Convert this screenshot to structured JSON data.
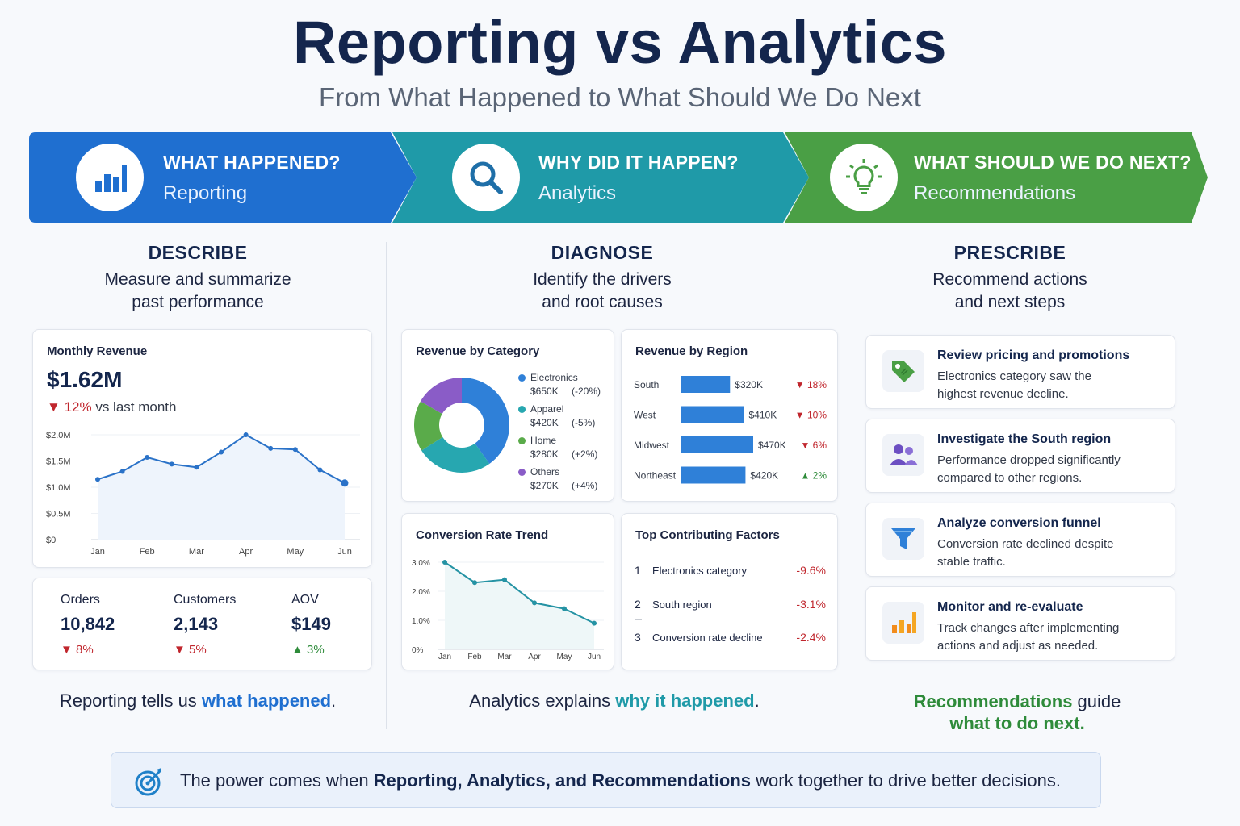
{
  "header": {
    "title": "Reporting vs Analytics",
    "subtitle": "From What Happened to What Should We Do Next"
  },
  "banners": [
    {
      "title": "WHAT HAPPENED?",
      "subtitle": "Reporting",
      "icon": "bar-chart-icon",
      "color": "#1f6fd0"
    },
    {
      "title": "WHY DID IT HAPPEN?",
      "subtitle": "Analytics",
      "icon": "magnifier-icon",
      "color": "#1f9aa8"
    },
    {
      "title": "WHAT SHOULD WE DO NEXT?",
      "subtitle": "Recommendations",
      "icon": "lightbulb-icon",
      "color": "#4a9f45"
    }
  ],
  "columns": {
    "describe": {
      "heading": "DESCRIBE",
      "line1": "Measure and summarize",
      "line2": "past performance"
    },
    "diagnose": {
      "heading": "DIAGNOSE",
      "line1": "Identify the drivers",
      "line2": "and root causes"
    },
    "prescribe": {
      "heading": "PRESCRIBE",
      "line1": "Recommend actions",
      "line2": "and next steps"
    }
  },
  "monthly_revenue": {
    "title": "Monthly Revenue",
    "value": "$1.62M",
    "change": "12%",
    "change_text": "vs last month"
  },
  "kpis": [
    {
      "label": "Orders",
      "value": "10,842",
      "change": "8%",
      "dir": "down"
    },
    {
      "label": "Customers",
      "value": "2,143",
      "change": "5%",
      "dir": "down"
    },
    {
      "label": "AOV",
      "value": "$149",
      "change": "3%",
      "dir": "up"
    }
  ],
  "category": {
    "title": "Revenue by Category",
    "items": [
      {
        "name": "Electronics",
        "value": "$650K",
        "change": "(-20%)",
        "color": "#2f80d8"
      },
      {
        "name": "Apparel",
        "value": "$420K",
        "change": "(-5%)",
        "color": "#27a7b0"
      },
      {
        "name": "Home",
        "value": "$280K",
        "change": "(+2%)",
        "color": "#5aab4a"
      },
      {
        "name": "Others",
        "value": "$270K",
        "change": "(+4%)",
        "color": "#8a5cc7"
      }
    ]
  },
  "region": {
    "title": "Revenue by Region",
    "items": [
      {
        "name": "South",
        "label": "$320K",
        "change": "18%",
        "dir": "down"
      },
      {
        "name": "West",
        "label": "$410K",
        "change": "10%",
        "dir": "down"
      },
      {
        "name": "Midwest",
        "label": "$470K",
        "change": "6%",
        "dir": "down"
      },
      {
        "name": "Northeast",
        "label": "$420K",
        "change": "2%",
        "dir": "up"
      }
    ]
  },
  "conversion": {
    "title": "Conversion Rate Trend"
  },
  "factors": {
    "title": "Top Contributing Factors",
    "items": [
      {
        "rank": "1",
        "name": "Electronics category",
        "value": "-9.6%"
      },
      {
        "rank": "2",
        "name": "South region",
        "value": "-3.1%"
      },
      {
        "rank": "3",
        "name": "Conversion rate decline",
        "value": "-2.4%"
      }
    ]
  },
  "recommendations": [
    {
      "title": "Review pricing and promotions",
      "line1": "Electronics category saw the",
      "line2": "highest revenue decline.",
      "icon": "price-tag-icon"
    },
    {
      "title": "Investigate the South region",
      "line1": "Performance dropped significantly",
      "line2": "compared to other regions.",
      "icon": "users-icon"
    },
    {
      "title": "Analyze conversion funnel",
      "line1": "Conversion rate declined despite",
      "line2": "stable traffic.",
      "icon": "funnel-icon"
    },
    {
      "title": "Monitor and re-evaluate",
      "line1": "Track changes after implementing",
      "line2": "actions and adjust as needed.",
      "icon": "bar-chart-icon"
    }
  ],
  "summaries": {
    "reporting_pre": "Reporting tells us ",
    "reporting_hl": "what happened",
    "reporting_post": ".",
    "analytics_pre": "Analytics explains ",
    "analytics_hl": "why it happened",
    "analytics_post": ".",
    "rec_line1_hl": "Recommendations",
    "rec_line1_post": " guide",
    "rec_line2_hl": "what to do next",
    "rec_line2_post": "."
  },
  "footer": {
    "pre": "The power comes when ",
    "strong": "Reporting, Analytics, and Recommendations",
    "post": " work together to drive better decisions."
  },
  "chart_data": [
    {
      "type": "line",
      "title": "Monthly Revenue",
      "x_ticks": [
        "Jan",
        "Feb",
        "Mar",
        "Apr",
        "May",
        "Jun"
      ],
      "y_ticks": [
        "$0",
        "$0.5M",
        "$1.0M",
        "$1.5M",
        "$2.0M"
      ],
      "ylim": [
        0,
        2.0
      ],
      "values": [
        1.15,
        1.3,
        1.57,
        1.44,
        1.38,
        1.67,
        2.0,
        1.74,
        1.72,
        1.33,
        1.08
      ],
      "grid": "horizontal"
    },
    {
      "type": "pie",
      "title": "Revenue by Category",
      "categories": [
        "Electronics",
        "Apparel",
        "Home",
        "Others"
      ],
      "values": [
        650,
        420,
        280,
        270
      ]
    },
    {
      "type": "bar",
      "title": "Revenue by Region",
      "categories": [
        "South",
        "West",
        "Midwest",
        "Northeast"
      ],
      "values": [
        320,
        410,
        470,
        420
      ]
    },
    {
      "type": "line",
      "title": "Conversion Rate Trend",
      "x_ticks": [
        "Jan",
        "Feb",
        "Mar",
        "Apr",
        "May",
        "Jun"
      ],
      "y_ticks": [
        "0%",
        "1.0%",
        "2.0%",
        "3.0%"
      ],
      "ylim": [
        0,
        3.0
      ],
      "values": [
        3.0,
        2.3,
        2.4,
        1.6,
        1.4,
        0.9
      ],
      "grid": "horizontal"
    }
  ]
}
